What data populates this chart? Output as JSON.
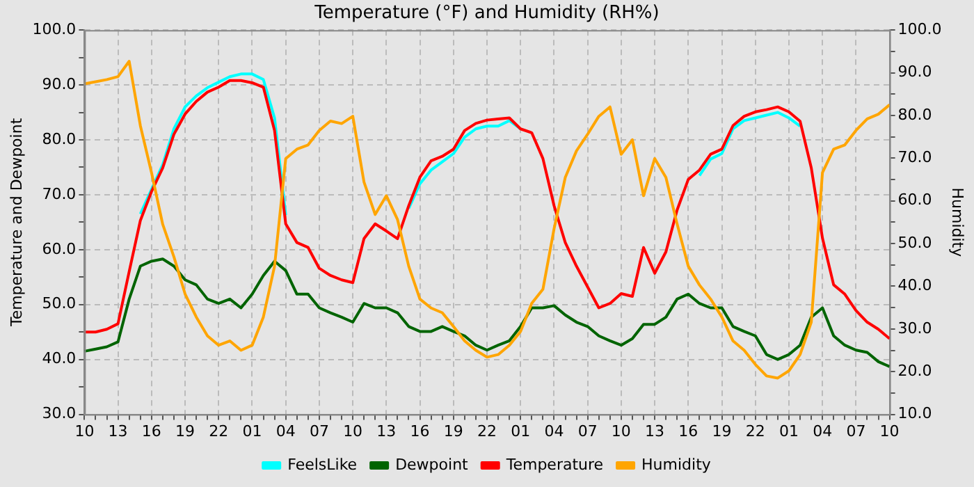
{
  "chart_data": {
    "type": "line",
    "title": "Temperature (°F) and Humidity (RH%)",
    "ylabel": "Temperature and Dewpoint",
    "y2label": "Humidity",
    "categories": [
      "10",
      null,
      null,
      "13",
      null,
      null,
      "16",
      null,
      null,
      "19",
      null,
      null,
      "22",
      null,
      null,
      "01",
      null,
      null,
      "04",
      null,
      null,
      "07",
      null,
      null,
      "10",
      null,
      null,
      "13",
      null,
      null,
      "16",
      null,
      null,
      "19",
      null,
      null,
      "22",
      null,
      null,
      "01",
      null,
      null,
      "04",
      null,
      null,
      "07",
      null,
      null,
      "10",
      null,
      null,
      "13",
      null,
      null,
      "16",
      null,
      null,
      "19",
      null,
      null,
      "22",
      null,
      null,
      "01",
      null,
      null,
      "04",
      null,
      null,
      "07",
      null,
      null,
      "10"
    ],
    "ylim": [
      30,
      100
    ],
    "yticks": [
      {
        "value": 30,
        "label": "30.0"
      },
      {
        "value": 35,
        "label": null
      },
      {
        "value": 40,
        "label": "40.0"
      },
      {
        "value": 45,
        "label": null
      },
      {
        "value": 50,
        "label": "50.0"
      },
      {
        "value": 55,
        "label": null
      },
      {
        "value": 60,
        "label": "60.0"
      },
      {
        "value": 65,
        "label": null
      },
      {
        "value": 70,
        "label": "70.0"
      },
      {
        "value": 75,
        "label": null
      },
      {
        "value": 80,
        "label": "80.0"
      },
      {
        "value": 85,
        "label": null
      },
      {
        "value": 90,
        "label": "90.0"
      },
      {
        "value": 95,
        "label": null
      },
      {
        "value": 100,
        "label": "100.0"
      }
    ],
    "y2lim": [
      10,
      100
    ],
    "y2ticks": [
      {
        "value": 10,
        "label": "10.0"
      },
      {
        "value": 15,
        "label": null
      },
      {
        "value": 20,
        "label": "20.0"
      },
      {
        "value": 25,
        "label": null
      },
      {
        "value": 30,
        "label": "30.0"
      },
      {
        "value": 35,
        "label": null
      },
      {
        "value": 40,
        "label": "40.0"
      },
      {
        "value": 45,
        "label": null
      },
      {
        "value": 50,
        "label": "50.0"
      },
      {
        "value": 55,
        "label": null
      },
      {
        "value": 60,
        "label": "60.0"
      },
      {
        "value": 65,
        "label": null
      },
      {
        "value": 70,
        "label": "70.0"
      },
      {
        "value": 75,
        "label": null
      },
      {
        "value": 80,
        "label": "80.0"
      },
      {
        "value": 85,
        "label": null
      },
      {
        "value": 90,
        "label": "90.0"
      },
      {
        "value": 95,
        "label": null
      },
      {
        "value": 100,
        "label": "100.0"
      }
    ],
    "grid": true,
    "legend": "bottom",
    "marker": "none",
    "line_style": "solid",
    "series": [
      {
        "name": "FeelsLike",
        "color": "#00ffff",
        "values": [
          null,
          null,
          null,
          null,
          null,
          66.5,
          71,
          75.5,
          82,
          86,
          88,
          89.5,
          90.5,
          91.5,
          92,
          92,
          91,
          84,
          66.3,
          null,
          null,
          null,
          null,
          null,
          null,
          null,
          null,
          null,
          null,
          67.5,
          72,
          74.5,
          76,
          77.5,
          80.5,
          82,
          82.5,
          82.5,
          83.5,
          82,
          null,
          null,
          null,
          null,
          null,
          null,
          null,
          null,
          null,
          null,
          null,
          null,
          null,
          null,
          null,
          73.5,
          76.5,
          77.5,
          82,
          83.5,
          84,
          84.5,
          85,
          84,
          82.5,
          null,
          null,
          null,
          null,
          null,
          null,
          null,
          null
        ]
      },
      {
        "name": "Dewpoint",
        "color": "#006400",
        "values": [
          41.5,
          41.9,
          42.3,
          43.2,
          51,
          57,
          57.9,
          58.3,
          57,
          54.5,
          53.6,
          51,
          50.2,
          51,
          49.4,
          51.9,
          55.3,
          57.9,
          56.2,
          51.9,
          51.9,
          49.4,
          48.5,
          47.7,
          46.8,
          50.2,
          49.4,
          49.4,
          48.5,
          46,
          45.1,
          45.1,
          46,
          45.1,
          44.3,
          42.6,
          41.7,
          42.6,
          43.4,
          46,
          49.4,
          49.4,
          49.8,
          48.1,
          46.8,
          46,
          44.3,
          43.4,
          42.6,
          43.8,
          46.4,
          46.4,
          47.7,
          51,
          51.9,
          50.2,
          49.4,
          49.4,
          46,
          45.1,
          44.3,
          40.9,
          40,
          40.9,
          42.6,
          47.7,
          49.4,
          44.3,
          42.6,
          41.7,
          41.3,
          39.6,
          38.7
        ]
      },
      {
        "name": "Temperature",
        "color": "#ff0000",
        "values": [
          45,
          45,
          45.5,
          46.5,
          56,
          65.3,
          70.6,
          74.9,
          81,
          84.7,
          87,
          88.7,
          89.6,
          90.8,
          90.8,
          90.4,
          89.6,
          81.7,
          64.7,
          61.3,
          60.4,
          56.6,
          55.3,
          54.5,
          54,
          62,
          64.7,
          63.4,
          62,
          68,
          73.2,
          76.2,
          77,
          78.3,
          81.7,
          83,
          83.6,
          83.8,
          84,
          82,
          81.3,
          76.6,
          68,
          61.3,
          57,
          53.2,
          49.4,
          50.2,
          52,
          51.5,
          60.4,
          55.7,
          59.6,
          67.2,
          72.8,
          74.5,
          77.4,
          78.3,
          82.6,
          84.3,
          85.1,
          85.5,
          86,
          85.1,
          83.4,
          74.9,
          62.1,
          53.6,
          51.9,
          48.9,
          46.8,
          45.5,
          43.8
        ]
      },
      {
        "name": "Humidity",
        "color": "#ffa500",
        "axis": "y2",
        "values": [
          87.4,
          87.9,
          88.4,
          89.1,
          92.7,
          77.6,
          66.6,
          54.5,
          46.9,
          38.2,
          32.8,
          28.4,
          26.2,
          27.2,
          25,
          26.2,
          32.8,
          44.7,
          69.9,
          72.1,
          73.1,
          76.5,
          78.7,
          78.1,
          79.8,
          64.4,
          56.8,
          61.2,
          55.6,
          44.7,
          37,
          34.9,
          33.8,
          30.6,
          27.2,
          25,
          23.4,
          24,
          26.2,
          29.4,
          36,
          39.3,
          53.5,
          65.5,
          71.7,
          75.6,
          79.8,
          82,
          70.9,
          74.3,
          61.2,
          69.9,
          65.5,
          54.6,
          44.7,
          40.3,
          37,
          32.8,
          27.2,
          25,
          21.7,
          19,
          18.5,
          20.2,
          24,
          31.6,
          66.6,
          72.1,
          73.1,
          76.5,
          79.2,
          80.3,
          82.5
        ]
      }
    ]
  }
}
